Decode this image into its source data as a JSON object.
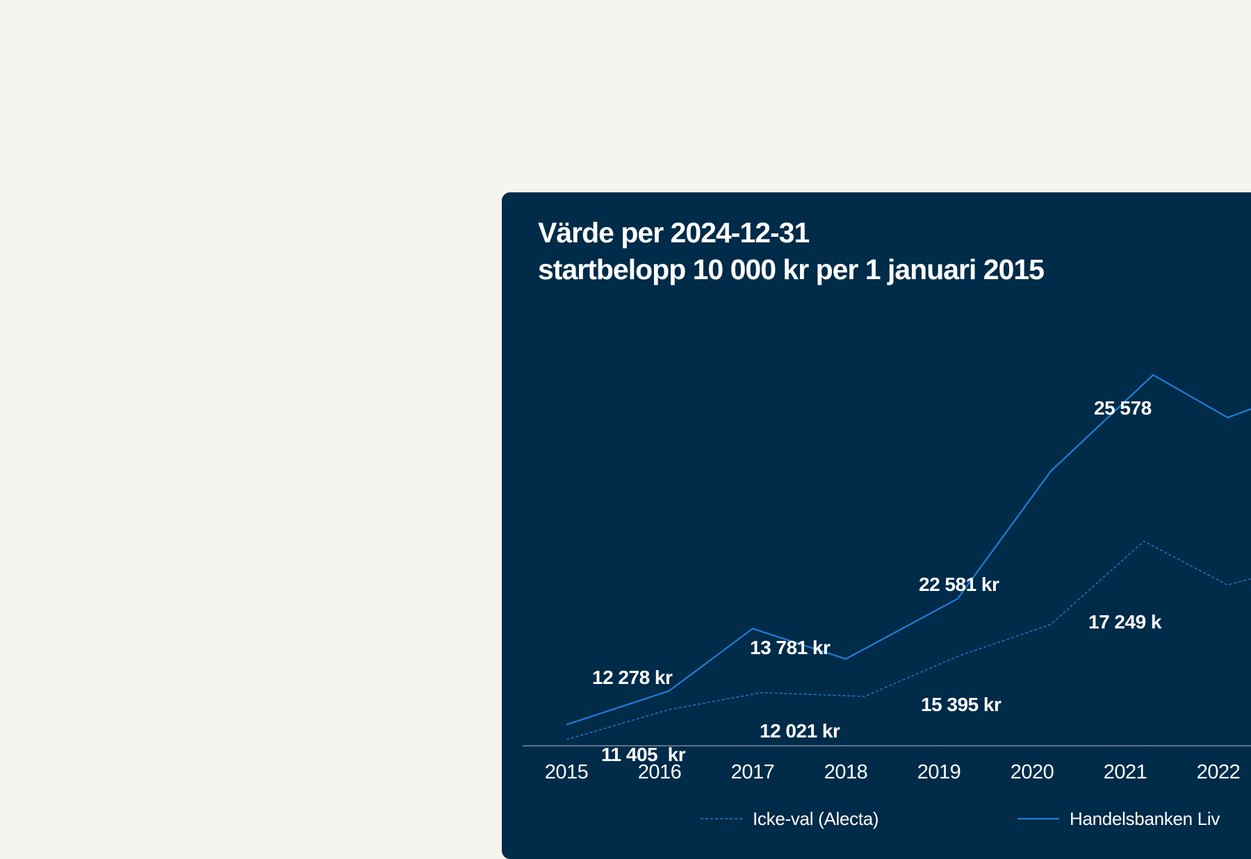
{
  "chart_data": {
    "type": "line",
    "title": "Värde per 2024-12-31",
    "subtitle": "startbelopp 10 000 kr per 1 januari 2015",
    "xlabel": "",
    "ylabel": "",
    "categories": [
      "2015",
      "2016",
      "2017",
      "2018",
      "2019",
      "2020",
      "2021",
      "2022"
    ],
    "ylim": [
      10000,
      27000
    ],
    "grid": false,
    "legend_position": "bottom",
    "series": [
      {
        "name": "Icke-val (Alecta)",
        "style": "dashed",
        "color": "#1e7fd9",
        "x": [
          2015.0,
          2016.1,
          2017.1,
          2018.2,
          2019.2,
          2020.2,
          2021.2,
          2022.1,
          2022.4
        ],
        "values": [
          10000,
          11405,
          12200,
          12021,
          13900,
          15395,
          19300,
          17249,
          17600
        ]
      },
      {
        "name": "Handelsbanken Liv",
        "style": "solid",
        "color": "#1e7fd9",
        "x": [
          2015.0,
          2016.1,
          2017.0,
          2018.0,
          2019.2,
          2020.2,
          2021.3,
          2022.1,
          2022.4
        ],
        "values": [
          10700,
          12278,
          15200,
          13781,
          16600,
          22581,
          27100,
          25100,
          25578
        ]
      }
    ],
    "data_labels": [
      {
        "text": "12 278 kr",
        "series": "Handelsbanken Liv",
        "year": "2016"
      },
      {
        "text": "13 781 kr",
        "series": "Handelsbanken Liv",
        "year": "2018"
      },
      {
        "text": "22 581 kr",
        "series": "Handelsbanken Liv",
        "year": "2020"
      },
      {
        "text": "25 578",
        "series": "Handelsbanken Liv",
        "year": "2022"
      },
      {
        "text": "11 405  kr",
        "series": "Icke-val (Alecta)",
        "year": "2016"
      },
      {
        "text": "12 021 kr",
        "series": "Icke-val (Alecta)",
        "year": "2018"
      },
      {
        "text": "15 395 kr",
        "series": "Icke-val (Alecta)",
        "year": "2020"
      },
      {
        "text": "17 249 k",
        "series": "Icke-val (Alecta)",
        "year": "2022"
      }
    ]
  },
  "colors": {
    "page_background": "#f5f4ee",
    "card_background": "#002b49",
    "series_line": "#1e7fd9",
    "axis_line": "#8fa3b3",
    "text": "#ffffff"
  }
}
